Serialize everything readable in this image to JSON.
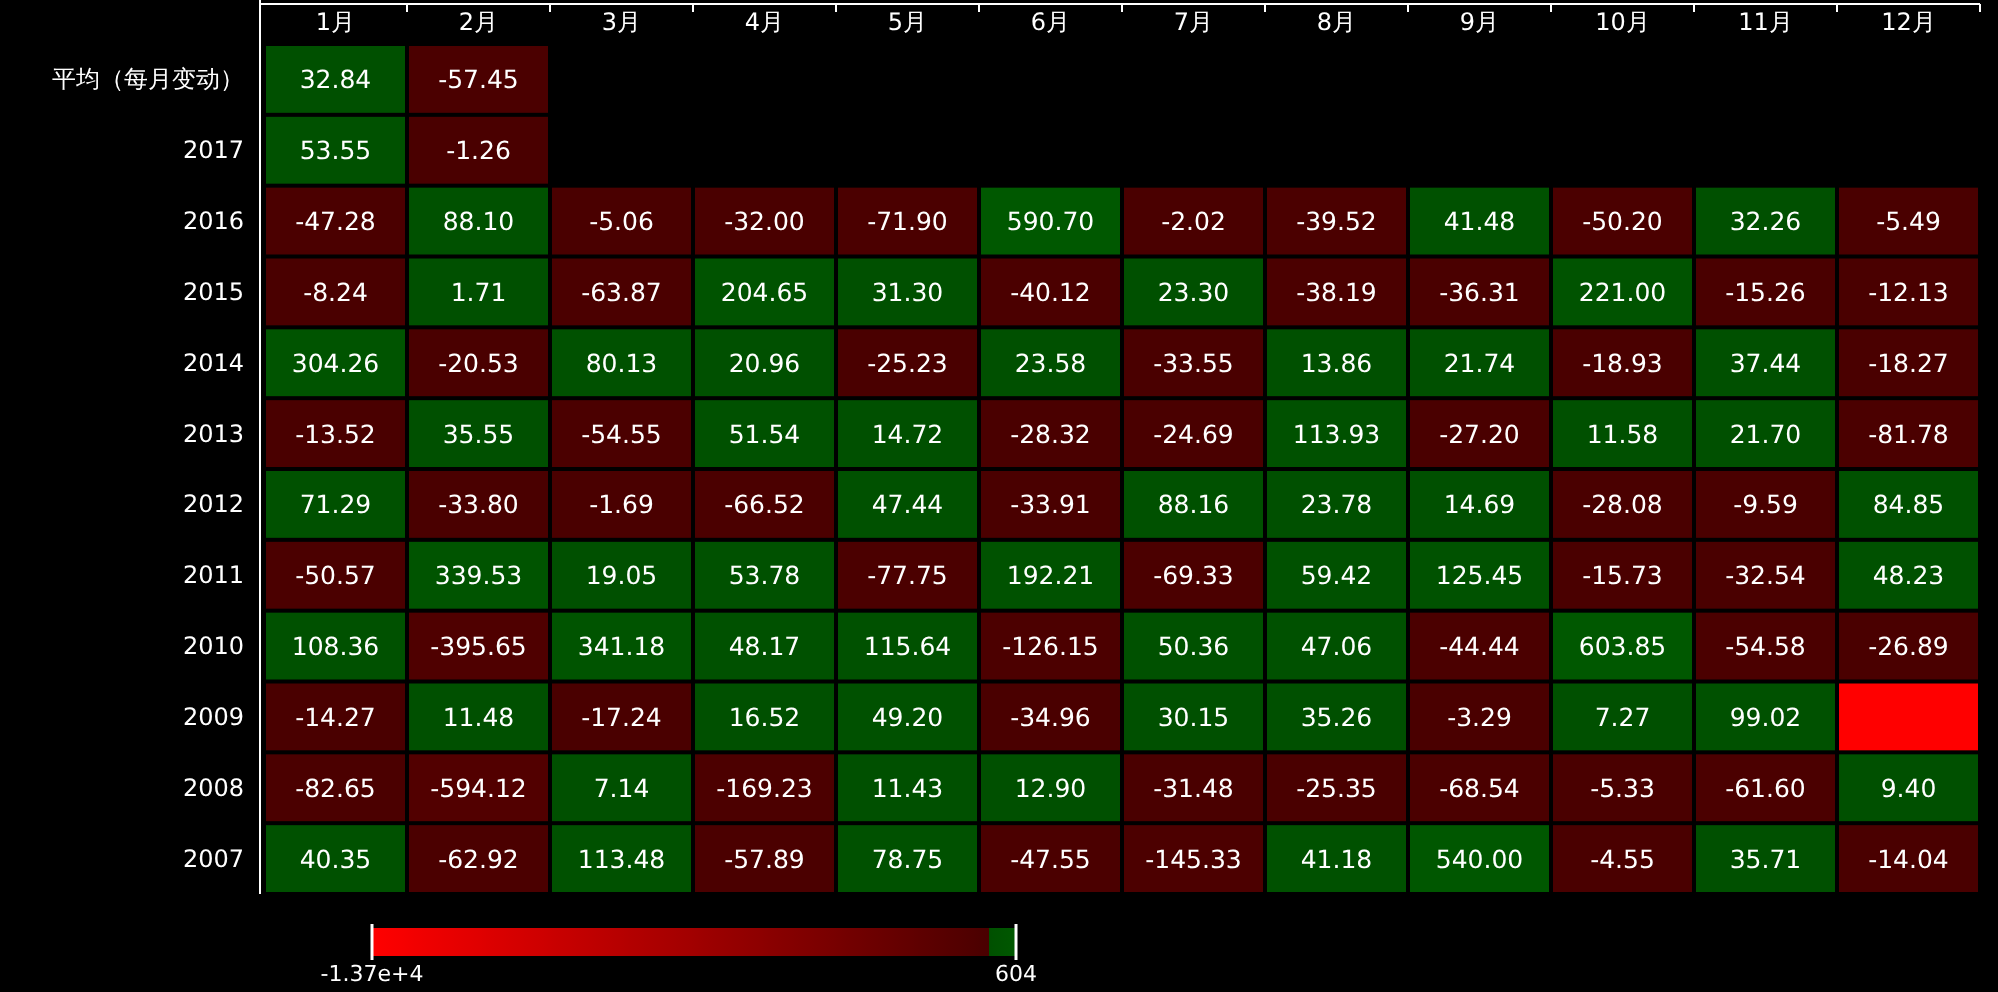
{
  "chart_data": {
    "type": "heatmap",
    "categories": [
      "1月",
      "2月",
      "3月",
      "4月",
      "5月",
      "6月",
      "7月",
      "8月",
      "9月",
      "10月",
      "11月",
      "12月"
    ],
    "y_categories": [
      "平均（每月变动）",
      "2017",
      "2016",
      "2015",
      "2014",
      "2013",
      "2012",
      "2011",
      "2010",
      "2009",
      "2008",
      "2007"
    ],
    "cells": [
      [
        32.84,
        -57.45,
        null,
        null,
        null,
        null,
        null,
        null,
        null,
        null,
        null,
        null
      ],
      [
        53.55,
        -1.26,
        null,
        null,
        null,
        null,
        null,
        null,
        null,
        null,
        null,
        null
      ],
      [
        -47.28,
        88.1,
        -5.06,
        -32.0,
        -71.9,
        590.7,
        -2.02,
        -39.52,
        41.48,
        -50.2,
        32.26,
        -5.49
      ],
      [
        -8.24,
        1.71,
        -63.87,
        204.65,
        31.3,
        -40.12,
        23.3,
        -38.19,
        -36.31,
        221.0,
        -15.26,
        -12.13
      ],
      [
        304.26,
        -20.53,
        80.13,
        20.96,
        -25.23,
        23.58,
        -33.55,
        13.86,
        21.74,
        -18.93,
        37.44,
        -18.27
      ],
      [
        -13.52,
        35.55,
        -54.55,
        51.54,
        14.72,
        -28.32,
        -24.69,
        113.93,
        -27.2,
        11.58,
        21.7,
        -81.78
      ],
      [
        71.29,
        -33.8,
        -1.69,
        -66.52,
        47.44,
        -33.91,
        88.16,
        23.78,
        14.69,
        -28.08,
        -9.59,
        84.85
      ],
      [
        -50.57,
        339.53,
        19.05,
        53.78,
        -77.75,
        192.21,
        -69.33,
        59.42,
        125.45,
        -15.73,
        -32.54,
        48.23
      ],
      [
        108.36,
        -395.65,
        341.18,
        48.17,
        115.64,
        -126.15,
        50.36,
        47.06,
        -44.44,
        603.85,
        -54.58,
        -26.89
      ],
      [
        -14.27,
        11.48,
        -17.24,
        16.52,
        49.2,
        -34.96,
        30.15,
        35.26,
        -3.29,
        7.27,
        99.02,
        -13700
      ],
      [
        -82.65,
        -594.12,
        7.14,
        -169.23,
        11.43,
        12.9,
        -31.48,
        -25.35,
        -68.54,
        -5.33,
        -61.6,
        9.4
      ],
      [
        40.35,
        -62.92,
        113.48,
        -57.89,
        78.75,
        -47.55,
        -145.33,
        41.18,
        540.0,
        -4.55,
        35.71,
        -14.04
      ]
    ],
    "cell_labels": [
      [
        "32.84",
        "-57.45",
        null,
        null,
        null,
        null,
        null,
        null,
        null,
        null,
        null,
        null
      ],
      [
        "53.55",
        "-1.26",
        null,
        null,
        null,
        null,
        null,
        null,
        null,
        null,
        null,
        null
      ],
      [
        "-47.28",
        "88.10",
        "-5.06",
        "-32.00",
        "-71.90",
        "590.70",
        "-2.02",
        "-39.52",
        "41.48",
        "-50.20",
        "32.26",
        "-5.49"
      ],
      [
        "-8.24",
        "1.71",
        "-63.87",
        "204.65",
        "31.30",
        "-40.12",
        "23.30",
        "-38.19",
        "-36.31",
        "221.00",
        "-15.26",
        "-12.13"
      ],
      [
        "304.26",
        "-20.53",
        "80.13",
        "20.96",
        "-25.23",
        "23.58",
        "-33.55",
        "13.86",
        "21.74",
        "-18.93",
        "37.44",
        "-18.27"
      ],
      [
        "-13.52",
        "35.55",
        "-54.55",
        "51.54",
        "14.72",
        "-28.32",
        "-24.69",
        "113.93",
        "-27.20",
        "11.58",
        "21.70",
        "-81.78"
      ],
      [
        "71.29",
        "-33.80",
        "-1.69",
        "-66.52",
        "47.44",
        "-33.91",
        "88.16",
        "23.78",
        "14.69",
        "-28.08",
        "-9.59",
        "84.85"
      ],
      [
        "-50.57",
        "339.53",
        "19.05",
        "53.78",
        "-77.75",
        "192.21",
        "-69.33",
        "59.42",
        "125.45",
        "-15.73",
        "-32.54",
        "48.23"
      ],
      [
        "108.36",
        "-395.65",
        "341.18",
        "48.17",
        "115.64",
        "-126.15",
        "50.36",
        "47.06",
        "-44.44",
        "603.85",
        "-54.58",
        "-26.89"
      ],
      [
        "-14.27",
        "11.48",
        "-17.24",
        "16.52",
        "49.20",
        "-34.96",
        "30.15",
        "35.26",
        "-3.29",
        "7.27",
        "99.02",
        null
      ],
      [
        "-82.65",
        "-594.12",
        "7.14",
        "-169.23",
        "11.43",
        "12.90",
        "-31.48",
        "-25.35",
        "-68.54",
        "-5.33",
        "-61.60",
        "9.40"
      ],
      [
        "40.35",
        "-62.92",
        "113.48",
        "-57.89",
        "78.75",
        "-47.55",
        "-145.33",
        "41.18",
        "540.00",
        "-4.55",
        "35.71",
        "-14.04"
      ]
    ],
    "clim": [
      -13700,
      604
    ],
    "cticks": [
      {
        "value": -13700,
        "label": "-1.37e+4"
      },
      {
        "value": 604,
        "label": "604"
      }
    ]
  }
}
